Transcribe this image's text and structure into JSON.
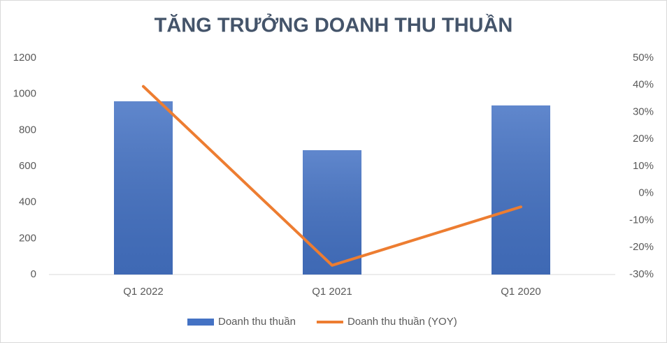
{
  "chart_data": {
    "type": "bar_line",
    "title": "TĂNG TRƯỞNG DOANH THU THUẦN",
    "categories": [
      "Q1 2022",
      "Q1 2021",
      "Q1 2020"
    ],
    "series": [
      {
        "name": "Doanh thu thuần",
        "type": "bar",
        "color": "#4472c4",
        "values": [
          960,
          689,
          937
        ]
      },
      {
        "name": "Doanh thu thuần (YOY)",
        "type": "line",
        "axis": "y2",
        "color": "#ed7d31",
        "values": [
          39.5,
          -26.6,
          -5
        ]
      }
    ],
    "ylim": [
      0,
      1200
    ],
    "yticks": [
      0,
      200,
      400,
      600,
      800,
      1000,
      1200
    ],
    "y2lim": [
      -30,
      50
    ],
    "y2ticks": [
      {
        "value": -30,
        "label": "-30%"
      },
      {
        "value": -20,
        "label": "-20%"
      },
      {
        "value": -10,
        "label": "-10%"
      },
      {
        "value": 0,
        "label": "0%"
      },
      {
        "value": 10,
        "label": "10%"
      },
      {
        "value": 20,
        "label": "20%"
      },
      {
        "value": 30,
        "label": "30%"
      },
      {
        "value": 40,
        "label": "40%"
      },
      {
        "value": 50,
        "label": "50%"
      }
    ],
    "grid": false,
    "legend": "bottom"
  }
}
